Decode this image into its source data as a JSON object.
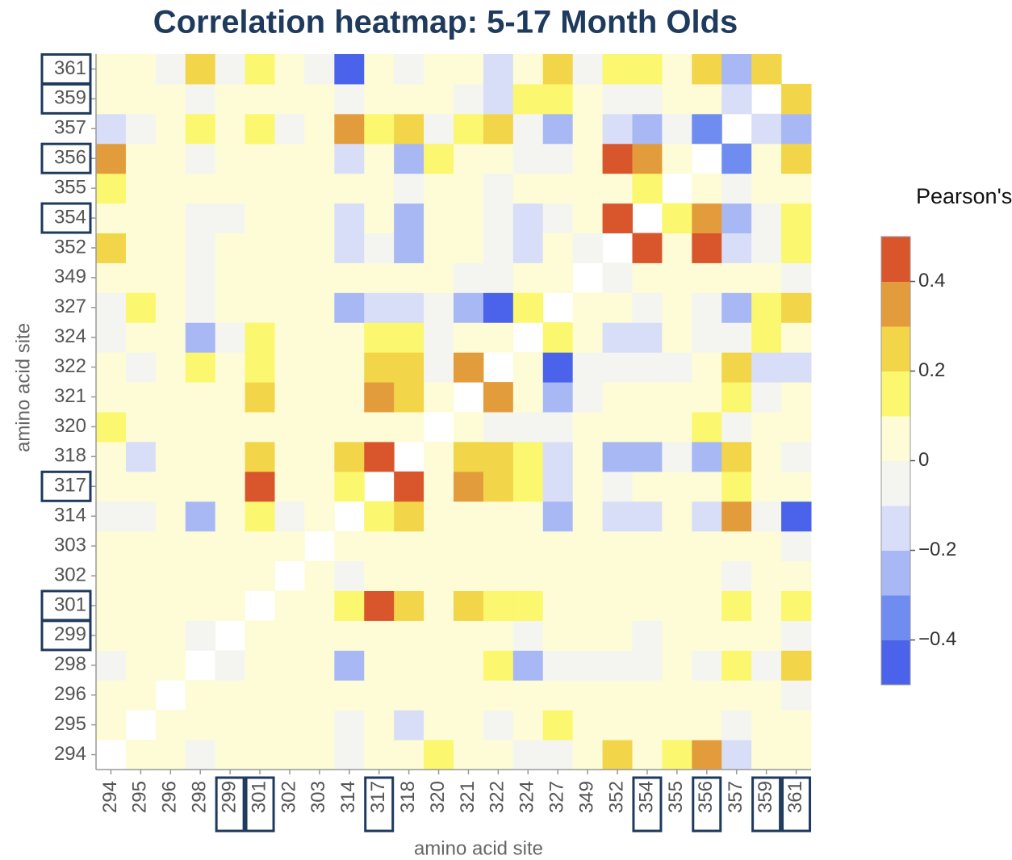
{
  "chart_data": {
    "type": "heatmap",
    "title": "Correlation heatmap: 5-17 Month Olds",
    "xlabel": "amino acid site",
    "ylabel": "amino acid site",
    "categories": [
      "294",
      "295",
      "296",
      "298",
      "299",
      "301",
      "302",
      "303",
      "314",
      "317",
      "318",
      "320",
      "321",
      "322",
      "324",
      "327",
      "349",
      "352",
      "354",
      "355",
      "356",
      "357",
      "359",
      "361"
    ],
    "highlight": [
      false,
      false,
      false,
      false,
      true,
      true,
      false,
      false,
      false,
      true,
      false,
      false,
      false,
      false,
      false,
      false,
      false,
      false,
      true,
      false,
      true,
      false,
      true,
      true
    ],
    "values": [
      [
        null,
        0.03,
        0.03,
        0.0,
        0.03,
        0.03,
        0.03,
        0.03,
        -0.05,
        0.08,
        0.05,
        0.12,
        0.05,
        0.05,
        -0.08,
        0.0,
        0.05,
        0.25,
        0.03,
        0.15,
        0.35,
        -0.15,
        0.03,
        0.08
      ],
      [
        0.03,
        null,
        0.03,
        0.03,
        0.03,
        0.03,
        0.03,
        0.03,
        -0.02,
        0.05,
        -0.1,
        0.05,
        0.05,
        -0.05,
        0.07,
        0.15,
        0.03,
        0.03,
        0.03,
        0.03,
        0.03,
        -0.05,
        0.03,
        0.05
      ],
      [
        0.03,
        0.03,
        null,
        0.02,
        0.02,
        0.03,
        0.03,
        0.03,
        0.02,
        0.03,
        0.03,
        0.03,
        0.03,
        0.03,
        0.05,
        0.03,
        0.03,
        0.03,
        0.02,
        0.03,
        0.03,
        0.03,
        0.03,
        0.0
      ],
      [
        0.0,
        0.03,
        0.02,
        null,
        0.0,
        0.1,
        0.02,
        0.03,
        -0.25,
        0.07,
        0.1,
        0.02,
        0.1,
        0.18,
        -0.2,
        -0.05,
        0.0,
        -0.05,
        -0.02,
        0.03,
        -0.05,
        0.15,
        -0.03,
        0.25
      ],
      [
        0.03,
        0.03,
        0.02,
        0.0,
        null,
        0.03,
        0.03,
        0.03,
        0.03,
        0.02,
        0.02,
        0.03,
        0.03,
        0.02,
        0.0,
        0.03,
        0.03,
        0.03,
        0.0,
        0.03,
        0.03,
        0.03,
        0.03,
        -0.03
      ],
      [
        0.03,
        0.03,
        0.03,
        0.1,
        0.03,
        null,
        0.03,
        0.03,
        0.15,
        0.45,
        0.3,
        0.03,
        0.3,
        0.2,
        0.12,
        0.03,
        0.03,
        0.03,
        0.03,
        0.03,
        0.07,
        0.2,
        0.1,
        0.18
      ],
      [
        0.03,
        0.03,
        0.03,
        0.02,
        0.03,
        0.03,
        null,
        0.03,
        0.0,
        0.05,
        0.03,
        0.03,
        0.03,
        0.02,
        0.03,
        0.03,
        0.05,
        0.03,
        0.1,
        0.03,
        0.03,
        -0.05,
        0.03,
        0.05
      ],
      [
        0.03,
        0.03,
        0.03,
        0.03,
        0.03,
        0.03,
        0.03,
        null,
        0.07,
        0.05,
        0.05,
        0.03,
        0.03,
        0.03,
        0.03,
        0.03,
        0.03,
        0.03,
        0.03,
        0.03,
        0.03,
        0.03,
        0.03,
        0.0
      ],
      [
        -0.05,
        -0.02,
        0.02,
        -0.25,
        0.03,
        0.15,
        0.0,
        0.07,
        null,
        0.18,
        0.25,
        0.08,
        0.1,
        0.07,
        0.05,
        -0.2,
        0.05,
        -0.15,
        -0.15,
        0.02,
        -0.15,
        0.35,
        0.0,
        -0.45
      ],
      [
        0.08,
        0.05,
        0.03,
        0.07,
        0.02,
        0.45,
        0.05,
        0.05,
        0.18,
        null,
        0.45,
        0.05,
        0.35,
        0.22,
        0.15,
        -0.1,
        0.03,
        0.0,
        0.07,
        0.05,
        0.07,
        0.15,
        0.05,
        0.07
      ],
      [
        0.05,
        -0.1,
        0.03,
        0.1,
        0.02,
        0.3,
        0.03,
        0.05,
        0.25,
        0.45,
        null,
        0.05,
        0.22,
        0.25,
        0.15,
        -0.15,
        0.03,
        -0.2,
        -0.25,
        -0.05,
        -0.2,
        0.3,
        0.05,
        -0.02
      ],
      [
        0.12,
        0.05,
        0.03,
        0.02,
        0.03,
        0.03,
        0.03,
        0.03,
        0.08,
        0.05,
        0.05,
        null,
        0.05,
        -0.08,
        -0.02,
        -0.02,
        0.03,
        0.08,
        0.05,
        0.03,
        0.15,
        -0.08,
        0.07,
        0.05
      ],
      [
        0.05,
        0.05,
        0.03,
        0.1,
        0.03,
        0.3,
        0.03,
        0.03,
        0.1,
        0.35,
        0.22,
        0.05,
        null,
        0.35,
        0.03,
        -0.2,
        -0.05,
        0.05,
        0.07,
        0.03,
        0.08,
        0.12,
        -0.02,
        0.05
      ],
      [
        0.05,
        -0.05,
        0.03,
        0.18,
        0.02,
        0.2,
        0.02,
        0.03,
        0.07,
        0.22,
        0.25,
        -0.08,
        0.35,
        null,
        0.03,
        -0.4,
        -0.03,
        -0.05,
        -0.07,
        -0.03,
        0.02,
        0.22,
        -0.15,
        -0.1
      ],
      [
        -0.08,
        0.07,
        0.05,
        -0.2,
        0.0,
        0.12,
        0.03,
        0.03,
        0.05,
        0.15,
        0.15,
        -0.02,
        0.03,
        0.03,
        null,
        0.18,
        0.05,
        -0.1,
        -0.12,
        0.03,
        -0.07,
        0.0,
        0.12,
        0.05
      ],
      [
        0.0,
        0.15,
        0.03,
        -0.05,
        0.03,
        0.03,
        0.03,
        0.03,
        -0.2,
        -0.1,
        -0.15,
        -0.02,
        -0.2,
        -0.4,
        0.18,
        null,
        0.03,
        0.03,
        -0.03,
        0.03,
        0.0,
        -0.2,
        0.12,
        0.22
      ],
      [
        0.05,
        0.03,
        0.03,
        0.0,
        0.03,
        0.03,
        0.05,
        0.03,
        0.05,
        0.03,
        0.03,
        0.03,
        -0.05,
        -0.03,
        0.05,
        0.03,
        null,
        0.0,
        0.03,
        0.03,
        0.03,
        0.03,
        0.03,
        0.0
      ],
      [
        0.25,
        0.03,
        0.03,
        -0.05,
        0.03,
        0.03,
        0.03,
        0.03,
        -0.15,
        0.0,
        -0.2,
        0.08,
        0.05,
        -0.05,
        -0.1,
        0.03,
        0.0,
        null,
        0.42,
        0.08,
        0.45,
        -0.15,
        -0.05,
        0.15
      ],
      [
        0.03,
        0.03,
        0.02,
        -0.02,
        0.0,
        0.03,
        0.1,
        0.03,
        -0.15,
        0.07,
        -0.25,
        0.05,
        0.07,
        -0.07,
        -0.12,
        -0.03,
        0.03,
        0.42,
        null,
        0.15,
        0.4,
        -0.25,
        -0.05,
        0.2
      ],
      [
        0.15,
        0.03,
        0.03,
        0.03,
        0.03,
        0.03,
        0.03,
        0.03,
        0.02,
        0.05,
        -0.05,
        0.03,
        0.03,
        -0.03,
        0.03,
        0.03,
        0.03,
        0.08,
        0.15,
        null,
        0.03,
        0.0,
        0.03,
        0.05
      ],
      [
        0.35,
        0.03,
        0.03,
        -0.05,
        0.03,
        0.07,
        0.03,
        0.03,
        -0.15,
        0.07,
        -0.2,
        0.15,
        0.08,
        0.02,
        -0.07,
        0.0,
        0.03,
        0.45,
        0.4,
        0.03,
        null,
        -0.3,
        0.03,
        0.22
      ],
      [
        -0.15,
        -0.05,
        0.03,
        0.15,
        0.03,
        0.2,
        -0.05,
        0.03,
        0.35,
        0.15,
        0.3,
        -0.08,
        0.12,
        0.22,
        0.0,
        -0.2,
        0.03,
        -0.15,
        -0.25,
        0.0,
        -0.3,
        null,
        -0.12,
        -0.25
      ],
      [
        0.03,
        0.03,
        0.03,
        -0.03,
        0.03,
        0.1,
        0.03,
        0.03,
        0.0,
        0.05,
        0.05,
        0.07,
        -0.02,
        -0.15,
        0.12,
        0.12,
        0.03,
        -0.05,
        -0.05,
        0.03,
        0.03,
        -0.12,
        null,
        0.22
      ],
      [
        0.08,
        0.05,
        0.0,
        0.25,
        -0.03,
        0.18,
        0.05,
        0.0,
        -0.45,
        0.07,
        -0.02,
        0.05,
        0.05,
        -0.1,
        0.05,
        0.22,
        0.0,
        0.15,
        0.2,
        0.05,
        0.22,
        -0.25,
        0.22,
        null
      ]
    ],
    "colorbar": {
      "title": "Pearson's r",
      "lim": [
        -0.5,
        0.5
      ],
      "ticks": [
        {
          "value": -0.4,
          "label": "−0.4"
        },
        {
          "value": -0.2,
          "label": "−0.2"
        },
        0,
        0.2,
        0.4
      ],
      "bins": [
        -0.5,
        -0.4,
        -0.3,
        -0.2,
        -0.1,
        0,
        0.1,
        0.2,
        0.3,
        0.4,
        0.5
      ],
      "colors": [
        "#4a63ea",
        "#6f8cf0",
        "#a8b8f4",
        "#d8def8",
        "#f4f5f1",
        "#fdfcd6",
        "#fbf76e",
        "#f2d548",
        "#e39c3c",
        "#d9552c"
      ]
    }
  }
}
